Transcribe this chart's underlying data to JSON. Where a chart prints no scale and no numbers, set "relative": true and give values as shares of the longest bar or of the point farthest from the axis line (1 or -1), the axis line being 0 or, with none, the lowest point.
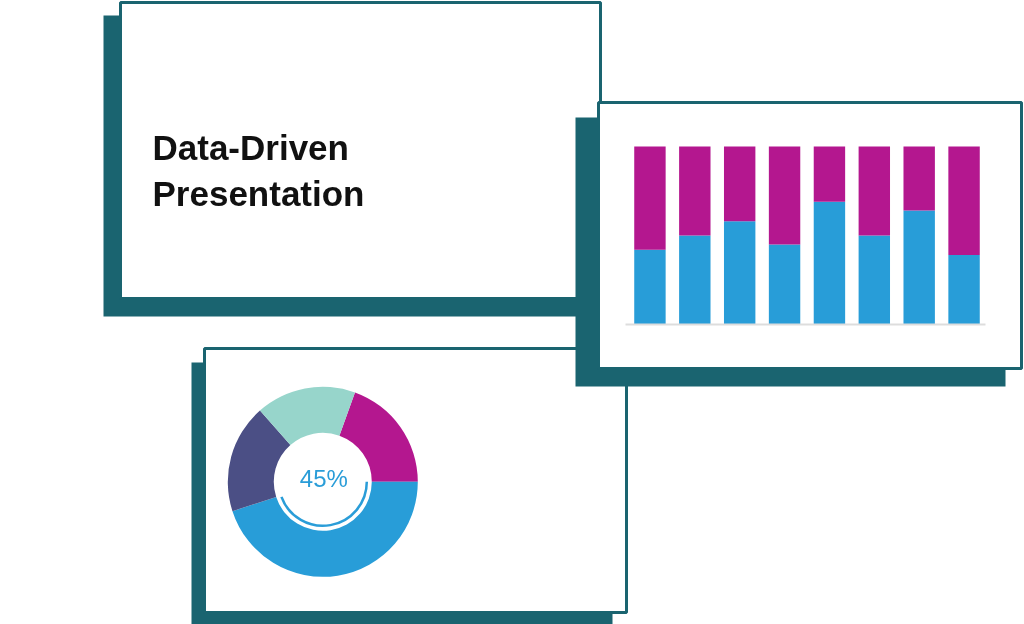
{
  "chart_data": [
    {
      "type": "other",
      "title": "Data-Driven Presentation"
    },
    {
      "type": "bar",
      "stacked": true,
      "relative": true,
      "categories": [
        null,
        null,
        null,
        null,
        null,
        null,
        null,
        null
      ],
      "series": [
        {
          "color": "#289dd8",
          "values": [
            0.42,
            0.5,
            0.58,
            0.45,
            0.69,
            0.5,
            0.64,
            0.39
          ]
        },
        {
          "color": "#b4178f",
          "values": [
            0.58,
            0.5,
            0.42,
            0.55,
            0.31,
            0.5,
            0.36,
            0.61
          ]
        }
      ]
    },
    {
      "type": "donut",
      "categories": [
        null,
        null,
        null,
        null
      ],
      "values": [
        19.5,
        45,
        18.5,
        17
      ],
      "colors": [
        "#b4178f",
        "#289dd8",
        "#4b4f85",
        "#97d5cb"
      ],
      "annotations": [
        "45%"
      ]
    }
  ]
}
